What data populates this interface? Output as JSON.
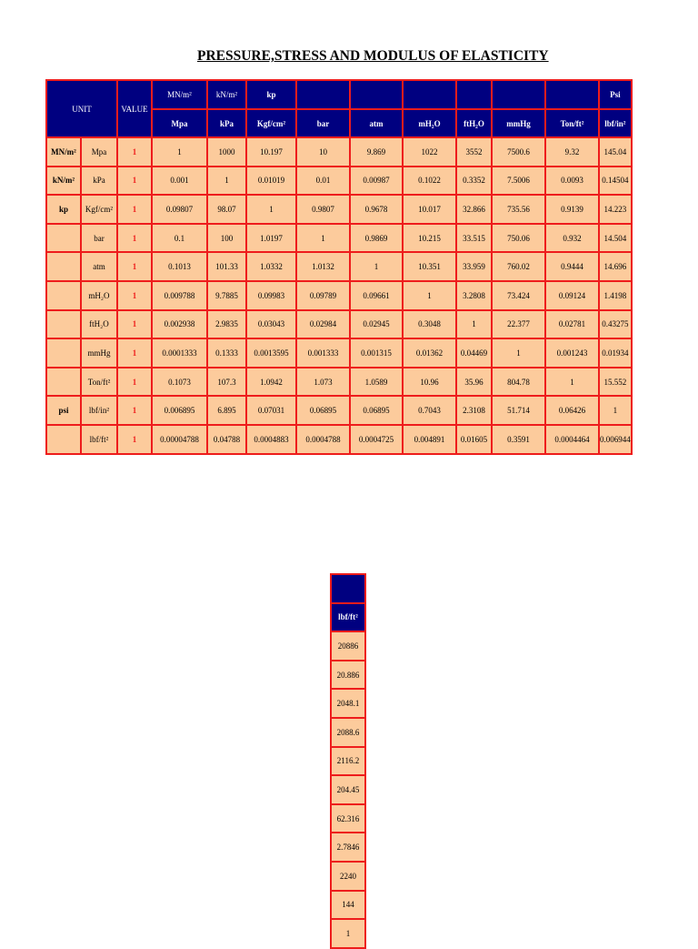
{
  "title": "PRESSURE,STRESS AND MODULUS OF ELASTICITY",
  "header": {
    "unit": "UNIT",
    "value": "VALUE",
    "top": [
      "MN/m²",
      "kN/m²",
      "kp",
      "",
      "",
      "",
      "",
      "",
      "",
      "Psi"
    ],
    "bottom": [
      "Mpa",
      "kPa",
      "Kgf/cm²",
      "bar",
      "atm",
      "mH₂O",
      "ftH₂O",
      "mmHg",
      "Ton/ft²",
      "lbf/in²"
    ]
  },
  "rows": [
    {
      "group": "MN/m²",
      "unit": "Mpa",
      "value": "1",
      "cells": [
        "1",
        "1000",
        "10.197",
        "10",
        "9.869",
        "1022",
        "3552",
        "7500.6",
        "9.32",
        "145.04"
      ]
    },
    {
      "group": "kN/m²",
      "unit": "kPa",
      "value": "1",
      "cells": [
        "0.001",
        "1",
        "0.01019",
        "0.01",
        "0.00987",
        "0.1022",
        "0.3352",
        "7.5006",
        "0.0093",
        "0.14504"
      ]
    },
    {
      "group": "kp",
      "unit": "Kgf/cm²",
      "value": "1",
      "cells": [
        "0.09807",
        "98.07",
        "1",
        "0.9807",
        "0.9678",
        "10.017",
        "32.866",
        "735.56",
        "0.9139",
        "14.223"
      ]
    },
    {
      "group": "",
      "unit": "bar",
      "value": "1",
      "cells": [
        "0.1",
        "100",
        "1.0197",
        "1",
        "0.9869",
        "10.215",
        "33.515",
        "750.06",
        "0.932",
        "14.504"
      ]
    },
    {
      "group": "",
      "unit": "atm",
      "value": "1",
      "cells": [
        "0.1013",
        "101.33",
        "1.0332",
        "1.0132",
        "1",
        "10.351",
        "33.959",
        "760.02",
        "0.9444",
        "14.696"
      ]
    },
    {
      "group": "",
      "unit": "mH₂O",
      "value": "1",
      "cells": [
        "0.009788",
        "9.7885",
        "0.09983",
        "0.09789",
        "0.09661",
        "1",
        "3.2808",
        "73.424",
        "0.09124",
        "1.4198"
      ]
    },
    {
      "group": "",
      "unit": "ftH₂O",
      "value": "1",
      "cells": [
        "0.002938",
        "2.9835",
        "0.03043",
        "0.02984",
        "0.02945",
        "0.3048",
        "1",
        "22.377",
        "0.02781",
        "0.43275"
      ]
    },
    {
      "group": "",
      "unit": "mmHg",
      "value": "1",
      "cells": [
        "0.0001333",
        "0.1333",
        "0.0013595",
        "0.001333",
        "0.001315",
        "0.01362",
        "0.04469",
        "1",
        "0.001243",
        "0.01934"
      ]
    },
    {
      "group": "",
      "unit": "Ton/ft²",
      "value": "1",
      "cells": [
        "0.1073",
        "107.3",
        "1.0942",
        "1.073",
        "1.0589",
        "10.96",
        "35.96",
        "804.78",
        "1",
        "15.552"
      ]
    },
    {
      "group": "psi",
      "unit": "lbf/in²",
      "value": "1",
      "cells": [
        "0.006895",
        "6.895",
        "0.07031",
        "0.06895",
        "0.06895",
        "0.7043",
        "2.3108",
        "51.714",
        "0.06426",
        "1"
      ]
    },
    {
      "group": "",
      "unit": "lbf/ft²",
      "value": "1",
      "cells": [
        "0.00004788",
        "0.04788",
        "0.0004883",
        "0.0004788",
        "0.0004725",
        "0.004891",
        "0.01605",
        "0.3591",
        "0.0004464",
        "0.006944"
      ]
    }
  ],
  "extra_column": {
    "top": "",
    "header": "lbf/ft²",
    "values": [
      "20886",
      "20.886",
      "2048.1",
      "2088.6",
      "2116.2",
      "204.45",
      "62.316",
      "2.7846",
      "2240",
      "144",
      "1"
    ]
  }
}
